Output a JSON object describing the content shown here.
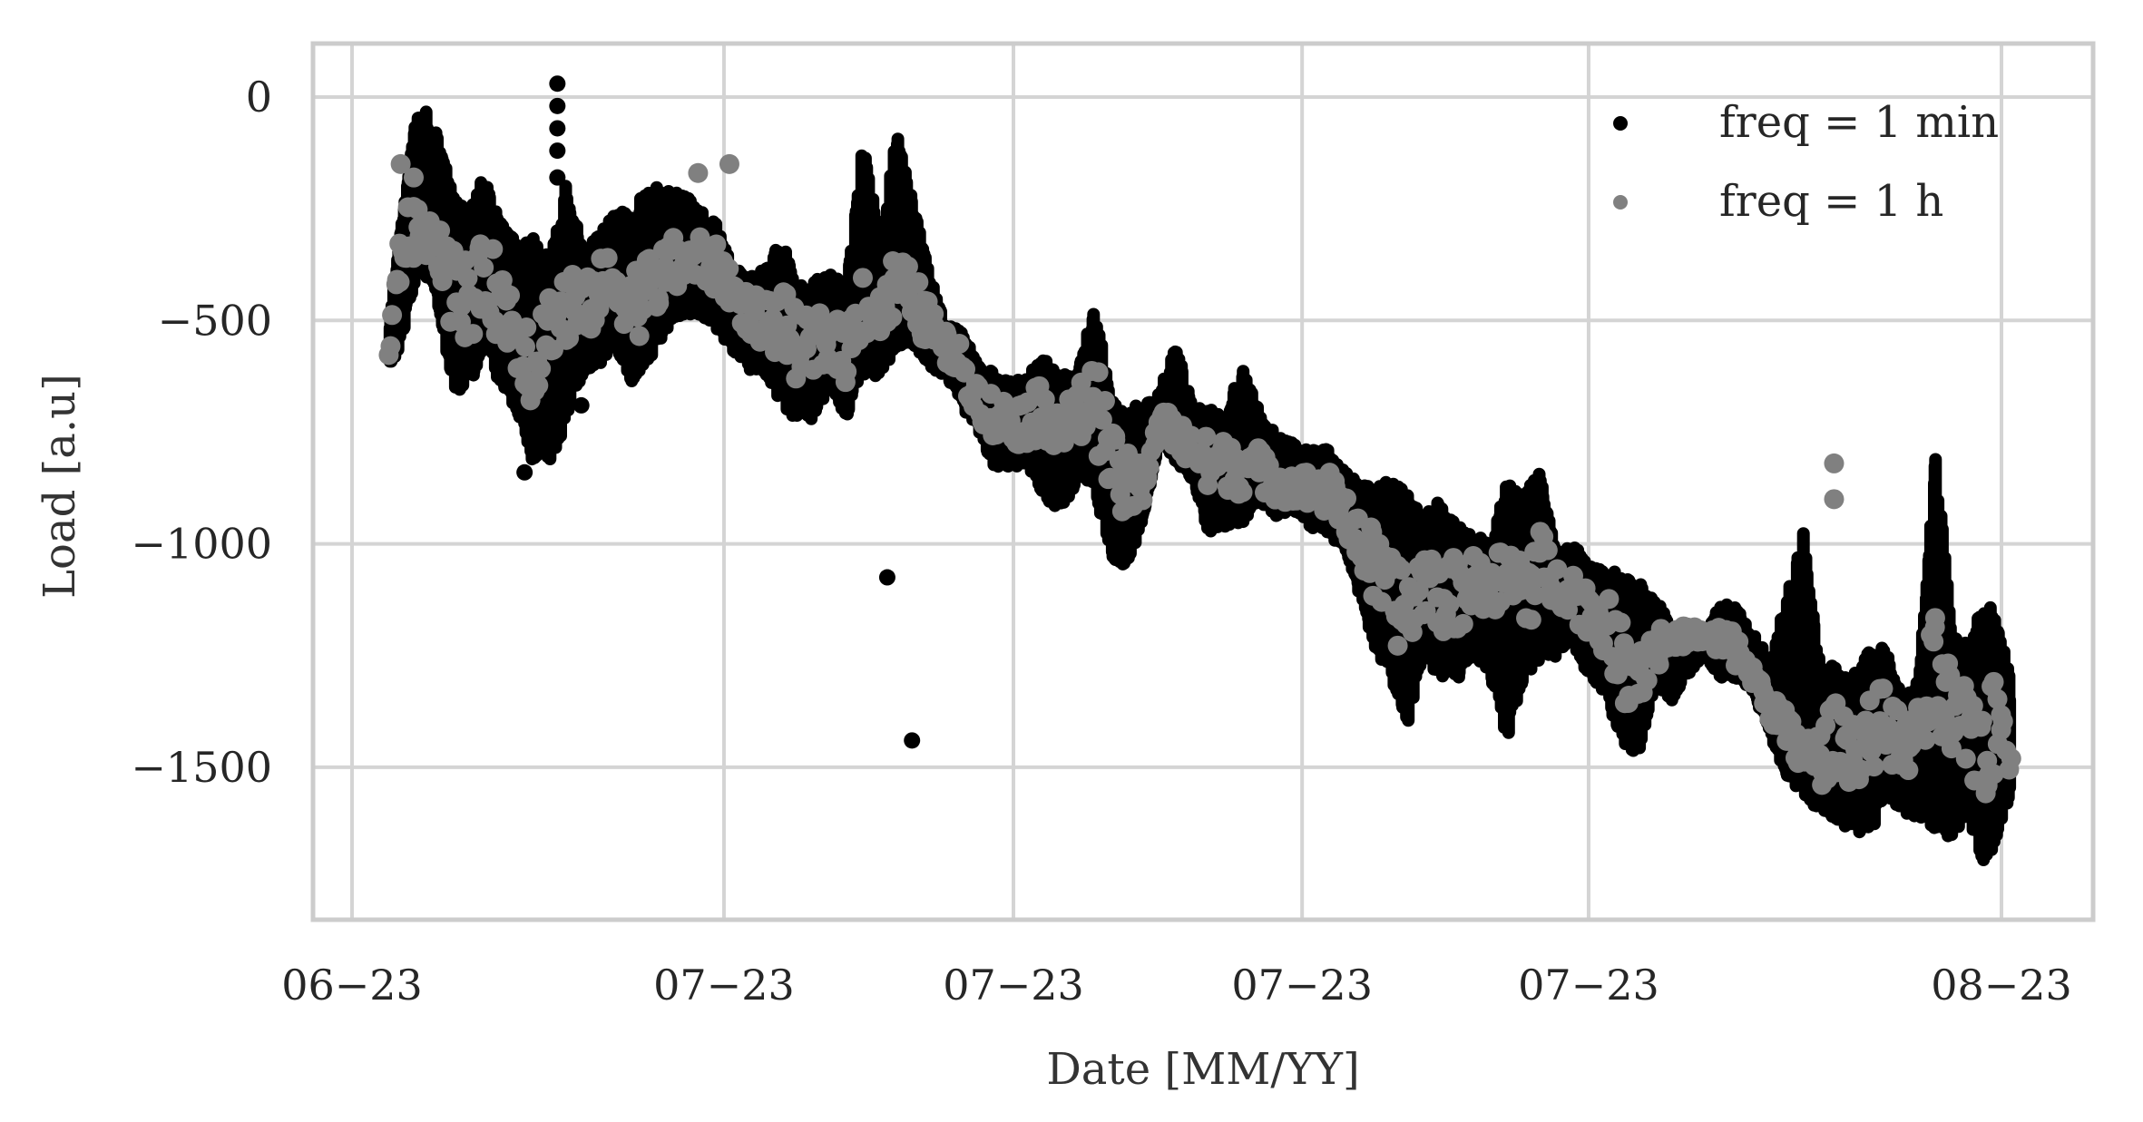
{
  "chart_data": {
    "type": "scatter",
    "title": "",
    "xlabel": "Date [MM/YY]",
    "ylabel": "Load [a.u]",
    "x_tick_labels": [
      "06−23",
      "07−23",
      "07−23",
      "07−23",
      "07−23",
      "08−23"
    ],
    "x_tick_positions": [
      0.0,
      0.2255,
      0.401,
      0.576,
      0.7497,
      1.0
    ],
    "y_tick_labels": [
      "0",
      "−500",
      "−1000",
      "−1500"
    ],
    "y_ticks": [
      0,
      -500,
      -1000,
      -1500
    ],
    "ylim": [
      -1843,
      124
    ],
    "xlim": [
      -0.0253,
      1.0567
    ],
    "grid": true,
    "legend_position": "upper right",
    "series": [
      {
        "name": "freq = 1 min",
        "color": "#000000",
        "marker_size": 7,
        "description": "dense 1-minute samples; band envelope (low/high) around hourly trend",
        "x": [
          0.023,
          0.03,
          0.04,
          0.05,
          0.06,
          0.07,
          0.08,
          0.09,
          0.1,
          0.11,
          0.12,
          0.13,
          0.14,
          0.15,
          0.16,
          0.17,
          0.18,
          0.19,
          0.2,
          0.21,
          0.22,
          0.23,
          0.24,
          0.25,
          0.26,
          0.27,
          0.28,
          0.29,
          0.3,
          0.31,
          0.32,
          0.33,
          0.34,
          0.35,
          0.36,
          0.37,
          0.38,
          0.39,
          0.4,
          0.41,
          0.42,
          0.43,
          0.44,
          0.45,
          0.46,
          0.47,
          0.48,
          0.49,
          0.5,
          0.51,
          0.52,
          0.53,
          0.54,
          0.55,
          0.56,
          0.57,
          0.58,
          0.59,
          0.6,
          0.61,
          0.62,
          0.63,
          0.64,
          0.65,
          0.66,
          0.67,
          0.68,
          0.69,
          0.7,
          0.71,
          0.72,
          0.73,
          0.74,
          0.75,
          0.76,
          0.77,
          0.78,
          0.79,
          0.8,
          0.81,
          0.82,
          0.83,
          0.84,
          0.85,
          0.86,
          0.87,
          0.88,
          0.89,
          0.9,
          0.91,
          0.92,
          0.93,
          0.94,
          0.95,
          0.96,
          0.97,
          0.98,
          0.99,
          1.0,
          1.005
        ],
        "high": [
          -500,
          -280,
          0,
          -60,
          -190,
          -250,
          -180,
          -270,
          -330,
          -300,
          -360,
          -190,
          -350,
          -300,
          -260,
          -250,
          -200,
          -210,
          -210,
          -250,
          -280,
          -380,
          -400,
          -390,
          -320,
          -420,
          -410,
          -400,
          -420,
          -90,
          -330,
          -80,
          -230,
          -400,
          -510,
          -530,
          -600,
          -620,
          -640,
          -620,
          -580,
          -630,
          -610,
          -460,
          -680,
          -700,
          -690,
          -660,
          -540,
          -700,
          -700,
          -720,
          -580,
          -710,
          -760,
          -770,
          -790,
          -780,
          -830,
          -860,
          -870,
          -860,
          -880,
          -930,
          -900,
          -960,
          -980,
          -1000,
          -870,
          -880,
          -840,
          -1020,
          -1000,
          -1050,
          -1060,
          -1070,
          -1090,
          -1110,
          -1200,
          -1180,
          -1200,
          -1140,
          -1140,
          -1200,
          -1260,
          -1120,
          -970,
          -1260,
          -1280,
          -1300,
          -1240,
          -1230,
          -1350,
          -1300,
          -800,
          -1200,
          -1230,
          -1120,
          -1200,
          -1300
        ],
        "low": [
          -600,
          -560,
          -380,
          -420,
          -640,
          -660,
          -560,
          -650,
          -700,
          -820,
          -830,
          -720,
          -620,
          -600,
          -560,
          -640,
          -590,
          -520,
          -490,
          -490,
          -510,
          -560,
          -610,
          -620,
          -680,
          -720,
          -720,
          -640,
          -720,
          -620,
          -620,
          -560,
          -560,
          -600,
          -620,
          -690,
          -750,
          -830,
          -830,
          -820,
          -900,
          -920,
          -860,
          -860,
          -1040,
          -1050,
          -940,
          -760,
          -820,
          -860,
          -980,
          -960,
          -950,
          -900,
          -940,
          -920,
          -960,
          -970,
          -1000,
          -1100,
          -1230,
          -1300,
          -1400,
          -1240,
          -1300,
          -1300,
          -1250,
          -1290,
          -1440,
          -1300,
          -1260,
          -1250,
          -1220,
          -1300,
          -1330,
          -1450,
          -1470,
          -1320,
          -1350,
          -1290,
          -1250,
          -1300,
          -1300,
          -1330,
          -1430,
          -1520,
          -1560,
          -1600,
          -1620,
          -1640,
          -1650,
          -1560,
          -1600,
          -1620,
          -1640,
          -1660,
          -1600,
          -1740,
          -1620,
          -1560
        ],
        "outliers": [
          {
            "x": 0.1046,
            "y": -840
          },
          {
            "x": 0.1245,
            "y": 30
          },
          {
            "x": 0.1245,
            "y": -20
          },
          {
            "x": 0.1245,
            "y": -70
          },
          {
            "x": 0.1245,
            "y": -120
          },
          {
            "x": 0.1245,
            "y": -180
          },
          {
            "x": 0.139,
            "y": -690
          },
          {
            "x": 0.3245,
            "y": -460
          },
          {
            "x": 0.3245,
            "y": -1075
          },
          {
            "x": 0.3395,
            "y": -1440
          },
          {
            "x": 0.3616,
            "y": -540
          },
          {
            "x": 0.3616,
            "y": -570
          }
        ]
      },
      {
        "name": "freq = 1 h",
        "color": "#808080",
        "marker_size": 11,
        "description": "hourly resampled values (trend)",
        "x": [
          0.023,
          0.03,
          0.04,
          0.05,
          0.06,
          0.07,
          0.08,
          0.09,
          0.1,
          0.11,
          0.12,
          0.13,
          0.14,
          0.15,
          0.16,
          0.17,
          0.18,
          0.19,
          0.2,
          0.21,
          0.22,
          0.23,
          0.24,
          0.25,
          0.26,
          0.27,
          0.28,
          0.29,
          0.3,
          0.31,
          0.32,
          0.33,
          0.34,
          0.35,
          0.36,
          0.37,
          0.38,
          0.39,
          0.4,
          0.41,
          0.42,
          0.43,
          0.44,
          0.45,
          0.46,
          0.47,
          0.48,
          0.49,
          0.5,
          0.51,
          0.52,
          0.53,
          0.54,
          0.55,
          0.56,
          0.57,
          0.58,
          0.59,
          0.6,
          0.61,
          0.62,
          0.63,
          0.64,
          0.65,
          0.66,
          0.67,
          0.68,
          0.69,
          0.7,
          0.71,
          0.72,
          0.73,
          0.74,
          0.75,
          0.76,
          0.77,
          0.78,
          0.79,
          0.8,
          0.81,
          0.82,
          0.83,
          0.84,
          0.85,
          0.86,
          0.87,
          0.88,
          0.89,
          0.9,
          0.91,
          0.92,
          0.93,
          0.94,
          0.95,
          0.96,
          0.97,
          0.98,
          0.99,
          1.0,
          1.005
        ],
        "y": [
          -560,
          -330,
          -300,
          -310,
          -420,
          -460,
          -400,
          -450,
          -520,
          -600,
          -500,
          -470,
          -480,
          -430,
          -410,
          -460,
          -430,
          -390,
          -370,
          -360,
          -380,
          -430,
          -480,
          -500,
          -510,
          -560,
          -560,
          -540,
          -580,
          -450,
          -500,
          -410,
          -450,
          -510,
          -560,
          -600,
          -680,
          -720,
          -730,
          -720,
          -700,
          -740,
          -720,
          -660,
          -820,
          -880,
          -860,
          -720,
          -760,
          -790,
          -830,
          -820,
          -820,
          -830,
          -860,
          -870,
          -880,
          -880,
          -920,
          -980,
          -1060,
          -1120,
          -1150,
          -1080,
          -1100,
          -1120,
          -1080,
          -1100,
          -1080,
          -1100,
          -1060,
          -1090,
          -1100,
          -1150,
          -1180,
          -1260,
          -1280,
          -1230,
          -1220,
          -1200,
          -1210,
          -1220,
          -1240,
          -1300,
          -1360,
          -1430,
          -1470,
          -1480,
          -1430,
          -1460,
          -1420,
          -1400,
          -1460,
          -1420,
          -1300,
          -1400,
          -1420,
          -1450,
          -1400,
          -1460
        ],
        "peaks": [
          {
            "x": 0.0295,
            "y": -150
          },
          {
            "x": 0.0374,
            "y": -180
          },
          {
            "x": 0.2098,
            "y": -170
          },
          {
            "x": 0.2288,
            "y": -150
          },
          {
            "x": 0.8985,
            "y": -820
          },
          {
            "x": 0.8985,
            "y": -900
          }
        ]
      }
    ]
  },
  "legend": {
    "items": [
      {
        "label": "freq = 1 min",
        "color": "#000000"
      },
      {
        "label": "freq = 1 h",
        "color": "#808080"
      }
    ]
  },
  "axes": {
    "frame_color": "#cccccc",
    "grid_color": "#d4d4d4"
  }
}
